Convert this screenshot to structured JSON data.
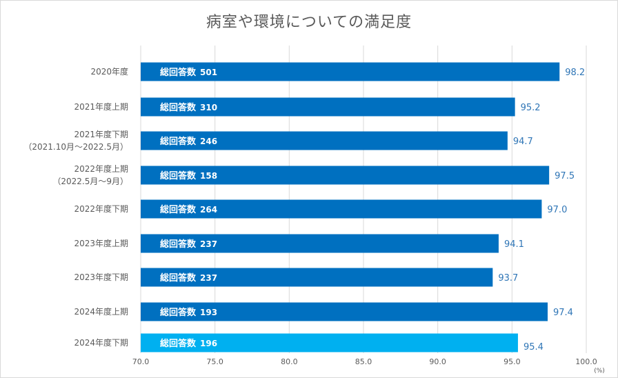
{
  "chart_data": {
    "type": "bar",
    "orientation": "horizontal",
    "title": "病室や環境についての満足度",
    "unit_label": "(%)",
    "xlim": [
      70.0,
      100.0
    ],
    "x_ticks": [
      "70.0",
      "75.0",
      "80.0",
      "85.0",
      "90.0",
      "95.0",
      "100.0"
    ],
    "grid": true,
    "categories": [
      [
        "2020年度"
      ],
      [
        "2021年度上期"
      ],
      [
        "2021年度下期",
        "（2021.10月～2022.5月）"
      ],
      [
        "2022年度上期",
        "（2022.5月～9月）"
      ],
      [
        "2022年度下期"
      ],
      [
        "2023年度上期"
      ],
      [
        "2023年度下期"
      ],
      [
        "2024年度上期"
      ],
      [
        "2024年度下期"
      ]
    ],
    "values": [
      98.2,
      95.2,
      94.7,
      97.5,
      97.0,
      94.1,
      93.7,
      97.4,
      95.4
    ],
    "value_labels": [
      "98.2",
      "95.2",
      "94.7",
      "97.5",
      "97.0",
      "94.1",
      "93.7",
      "97.4",
      "95.4"
    ],
    "bar_label_prefix": "総回答数",
    "responses": [
      "501",
      "310",
      "246",
      "158",
      "264",
      "237",
      "237",
      "193",
      "196"
    ],
    "colors": {
      "bar": "#0070c0",
      "bar_highlight": "#00b0f0",
      "value_label": "#2e75b6",
      "grid": "#d9d9d9",
      "text": "#595959"
    },
    "highlight_index": 8
  }
}
